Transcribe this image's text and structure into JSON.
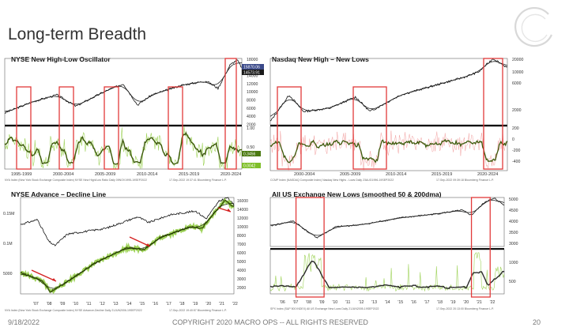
{
  "slide": {
    "title": "Long-term Breadth",
    "footer_date": "9/18/2022",
    "footer_copyright": "COPYRIGHT 2020 MACRO OPS -- ALL RIGHTS RESERVED",
    "page_number": "20"
  },
  "colors": {
    "price": "#111111",
    "ma": "#222222",
    "oscillator": "#3d5a0c",
    "oscillator_light": "#9fd35a",
    "highlight": "#e23a3a",
    "arrow": "#d42020"
  },
  "chart_data": [
    {
      "id": "nyse-hl",
      "type": "line",
      "title": "NYSE New High-Low Oscillator",
      "upper": {
        "y_ticks": [
          "18000",
          "16000",
          "14000",
          "12000",
          "10000",
          "8000",
          "6000",
          "4000",
          "2000"
        ],
        "last_value_labels": [
          "15870.06",
          "14573.91"
        ]
      },
      "lower": {
        "y_ticks": [
          "1.00",
          "0.50",
          "0.00"
        ],
        "last_value_labels": [
          "0.3456",
          "0.0042"
        ]
      },
      "x_ticks": [
        "1995-1999",
        "2000-2004",
        "2005-2009",
        "2010-2014",
        "2015-2019",
        "2020-2024"
      ],
      "highlight_periods": [
        "1998",
        "2002",
        "2008",
        "2011",
        "2020",
        "2022"
      ],
      "source_note": "NYA Index (New York Stock Exchange Composite Index) NYSE New High/Low Ratio  Daily 09NOV1995-19SEP2022",
      "copyright_note": "17-Sep-2022 19:37:41 Bloomberg Finance L.P."
    },
    {
      "id": "nasdaq-hl",
      "type": "line",
      "title": "Nasdaq New High – New Lows",
      "upper": {
        "y_ticks": [
          "20000",
          "10000",
          "6000",
          "2000"
        ]
      },
      "lower": {
        "y_ticks": [
          "200",
          "0",
          "-200",
          "-400"
        ]
      },
      "x_ticks": [
        "2000-2004",
        "2005-2009",
        "2010-2014",
        "2015-2019",
        "2020-2024"
      ],
      "highlight_periods": [
        "2002",
        "2008",
        "2022"
      ],
      "source_note": "CCMP Index (NASDAQ Composite Index) Nasdaq New Highs - Lows  Daily 23AUG1996-19SEP2022",
      "copyright_note": "17-Sep-2022 09:39:18 Bloomberg Finance L.P."
    },
    {
      "id": "nyse-ad",
      "type": "line",
      "title": "NYSE Advance – Decline Line",
      "upper": {
        "y_ticks": [
          "0.15M",
          "0.1M",
          "5000"
        ],
        "right_ticks": [
          "16000",
          "14000",
          "12000",
          "10000",
          "8000",
          "7000",
          "6000",
          "5000",
          "4000",
          "3000",
          "2000"
        ]
      },
      "x_ticks": [
        "'07",
        "'08",
        "'09",
        "'10",
        "'11",
        "'12",
        "'13",
        "'14",
        "'15",
        "'16",
        "'17",
        "'18",
        "'19",
        "'20",
        "'21",
        "'22"
      ],
      "annotations": [
        "divergence arrow 2007-2008",
        "divergence arrow 2014-2015",
        "divergence arrow 2022"
      ],
      "source_note": "NYA Index (New York Stock Exchange Composite Index) NYSE Advance-Decline  Daily 21JUN2006-19SEP2022",
      "copyright_note": "17-Sep-2022 19:40:57 Bloomberg Finance L.P."
    },
    {
      "id": "us-new-lows",
      "type": "line",
      "title": "All US Exchange New Lows (smoothed 50 & 200dma)",
      "upper": {
        "y_ticks": [
          "5000",
          "4500",
          "4000",
          "3500",
          "3000"
        ]
      },
      "lower": {
        "y_ticks": [
          "1000",
          "500"
        ]
      },
      "x_ticks": [
        "'06",
        "'07",
        "'08",
        "'09",
        "'10",
        "'11",
        "'12",
        "'13",
        "'14",
        "'15",
        "'16",
        "'17",
        "'18",
        "'19",
        "'20",
        "'21",
        "'22"
      ],
      "highlight_periods": [
        "2007-2009",
        "2020-2022"
      ],
      "source_note": "SPX Index (S&P 500 INDEX) All US Exchange New Lows  Daily 21JUN2005-19SEP2022",
      "copyright_note": "17-Sep-2022 20:13:00 Bloomberg Finance L.P."
    }
  ]
}
